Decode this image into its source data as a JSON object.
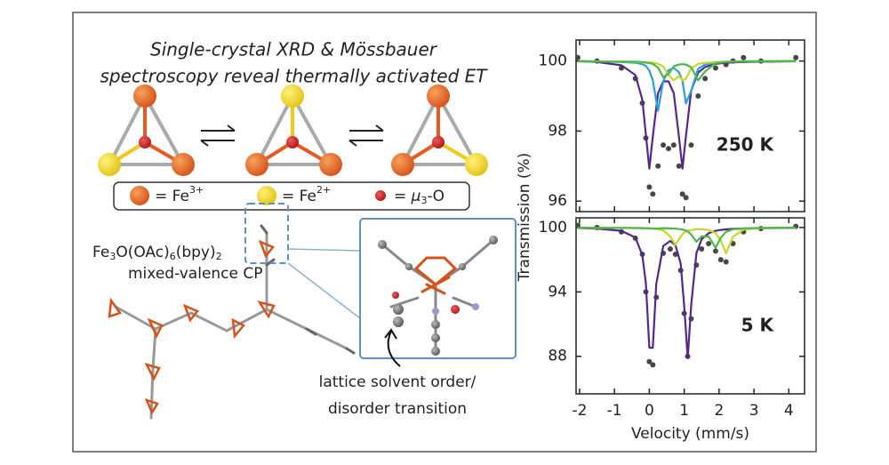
{
  "title": [
    "Single-crystal XRD & Mössbauer",
    "spectroscopy reveal thermally activated ET"
  ],
  "legend": [
    {
      "label": "= Fe",
      "sup": "3+"
    },
    {
      "label": "= Fe",
      "sup": "2+"
    },
    {
      "label": "= ",
      "italic": "μ",
      "sub": "3",
      "tail": "-O"
    }
  ],
  "compound": {
    "parts": [
      "Fe",
      "3",
      "O(OAc)",
      "6",
      "(bpy)",
      "2"
    ],
    "line2": "mixed-valence CP"
  },
  "caption": [
    "lattice solvent order/",
    "disorder transition"
  ],
  "chart_data": [
    {
      "type": "line",
      "annotation": "250 K",
      "ylabel": "Transmission (%)",
      "xlim": [
        -2.1,
        4.45
      ],
      "ylim": [
        95.7,
        100.6
      ],
      "yticks": [
        96,
        98,
        100
      ],
      "x": [
        -2.05,
        -1.5,
        -0.8,
        -0.4,
        -0.2,
        -0.1,
        0.0,
        0.1,
        0.25,
        0.4,
        0.55,
        0.7,
        0.85,
        0.95,
        1.05,
        1.2,
        1.4,
        1.6,
        1.9,
        2.2,
        2.4,
        2.7,
        3.2,
        4.2
      ],
      "series": [
        {
          "mode": "markers",
          "color": "#474747",
          "values": [
            100.1,
            100.0,
            99.8,
            99.5,
            98.8,
            97.8,
            96.4,
            96.2,
            97.0,
            97.6,
            97.5,
            97.6,
            97.0,
            96.2,
            96.1,
            97.6,
            99.0,
            99.5,
            99.8,
            99.9,
            100.0,
            100.1,
            100.0,
            100.1
          ]
        },
        {
          "mode": "lines",
          "color": "#52288f",
          "values": [
            100.0,
            99.97,
            99.88,
            99.6,
            98.9,
            97.9,
            96.93,
            97.84,
            99.08,
            99.42,
            99.42,
            99.08,
            97.84,
            96.93,
            97.86,
            99.16,
            99.67,
            99.83,
            99.92,
            99.95,
            99.96,
            99.97,
            99.98,
            99.99
          ]
        },
        {
          "mode": "lines",
          "color": "#2b9fd8",
          "values": [
            100.0,
            99.99,
            99.97,
            99.95,
            99.91,
            99.86,
            99.73,
            99.45,
            98.58,
            99.43,
            99.74,
            99.8,
            99.68,
            99.43,
            98.79,
            99.15,
            99.78,
            99.9,
            99.96,
            99.98,
            99.98,
            99.99,
            99.99,
            100.0
          ]
        },
        {
          "mode": "lines",
          "color": "#c6d62c",
          "values": [
            99.99,
            99.99,
            99.98,
            99.97,
            99.96,
            99.95,
            99.96,
            99.95,
            99.92,
            99.84,
            99.6,
            99.45,
            99.57,
            99.45,
            99.49,
            99.79,
            99.92,
            99.95,
            99.97,
            99.98,
            99.98,
            99.99,
            99.99,
            100.0
          ]
        },
        {
          "mode": "lines",
          "color": "#4cb748",
          "values": [
            99.99,
            99.98,
            99.98,
            99.98,
            99.97,
            99.96,
            99.94,
            99.92,
            99.81,
            99.54,
            99.63,
            99.85,
            99.9,
            99.91,
            99.9,
            99.82,
            99.45,
            99.7,
            99.94,
            99.97,
            99.98,
            99.99,
            99.99,
            100.0
          ]
        }
      ]
    },
    {
      "type": "line",
      "annotation": "5 K",
      "xlabel": "Velocity (mm/s)",
      "xlim": [
        -2.1,
        4.45
      ],
      "xticks": [
        -2,
        -1,
        0,
        1,
        2,
        3,
        4
      ],
      "ylim": [
        84.5,
        100.9
      ],
      "yticks": [
        88,
        94,
        100
      ],
      "x": [
        -2.05,
        -1.5,
        -0.8,
        -0.4,
        -0.2,
        -0.1,
        0.0,
        0.1,
        0.2,
        0.4,
        0.6,
        0.75,
        0.9,
        1.0,
        1.1,
        1.2,
        1.35,
        1.5,
        1.7,
        1.9,
        2.05,
        2.2,
        2.4,
        2.7,
        3.2,
        4.2
      ],
      "series": [
        {
          "mode": "markers",
          "color": "#474747",
          "values": [
            100.2,
            100.0,
            99.6,
            99.0,
            97.5,
            94.0,
            87.5,
            87.2,
            93.5,
            97.6,
            98.0,
            97.5,
            96.0,
            92.0,
            88.0,
            91.5,
            96.5,
            98.0,
            98.5,
            97.8,
            97.0,
            96.8,
            98.5,
            99.6,
            99.9,
            100.1
          ]
        },
        {
          "mode": "lines",
          "color": "#52288f",
          "values": [
            99.95,
            99.89,
            99.69,
            99.07,
            97.43,
            94.81,
            88.81,
            88.78,
            94.73,
            98.28,
            98.75,
            98.36,
            96.62,
            92.72,
            87.83,
            92.78,
            97.62,
            98.92,
            99.47,
            99.69,
            99.77,
            99.82,
            99.87,
            99.91,
            99.94,
            99.96
          ]
        },
        {
          "mode": "lines",
          "color": "#c6d62c",
          "values": [
            99.96,
            99.95,
            99.96,
            99.96,
            99.95,
            99.94,
            99.93,
            99.91,
            99.87,
            99.74,
            99.17,
            98.37,
            99.16,
            99.53,
            99.7,
            99.76,
            99.84,
            99.84,
            99.76,
            99.49,
            98.78,
            97.6,
            99.14,
            99.8,
            99.94,
            99.98
          ]
        },
        {
          "mode": "lines",
          "color": "#4cb748",
          "values": [
            99.98,
            99.97,
            99.96,
            99.95,
            99.94,
            99.93,
            99.92,
            99.91,
            99.9,
            99.94,
            99.92,
            99.9,
            99.84,
            99.77,
            99.63,
            99.34,
            98.67,
            99.18,
            99.17,
            98.12,
            99.05,
            99.6,
            99.83,
            99.92,
            99.96,
            99.98
          ]
        }
      ]
    }
  ]
}
